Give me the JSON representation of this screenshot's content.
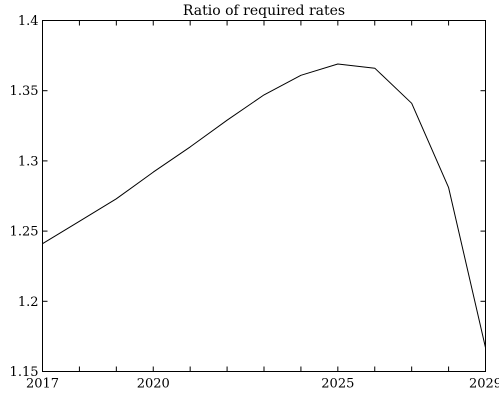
{
  "chart_data": {
    "type": "line",
    "title": "Ratio of required rates",
    "xlabel": "",
    "ylabel": "",
    "xlim": [
      2017,
      2029
    ],
    "ylim": [
      1.15,
      1.4
    ],
    "grid": false,
    "x_ticks": [
      2017,
      2020,
      2025,
      2029
    ],
    "x_tick_labels": [
      "2017",
      "2020",
      "2025",
      "2029"
    ],
    "y_ticks": [
      1.15,
      1.2,
      1.25,
      1.3,
      1.35,
      1.4
    ],
    "y_tick_labels": [
      "1.15",
      "1.2",
      "1.25",
      "1.3",
      "1.35",
      "1.4"
    ],
    "series": [
      {
        "color": "#000000",
        "x": [
          2017,
          2018,
          2019,
          2020,
          2021,
          2022,
          2023,
          2024,
          2025,
          2026,
          2027,
          2028,
          2029
        ],
        "y": [
          1.241,
          1.257,
          1.273,
          1.292,
          1.31,
          1.329,
          1.347,
          1.361,
          1.369,
          1.366,
          1.341,
          1.281,
          1.167
        ]
      }
    ]
  }
}
